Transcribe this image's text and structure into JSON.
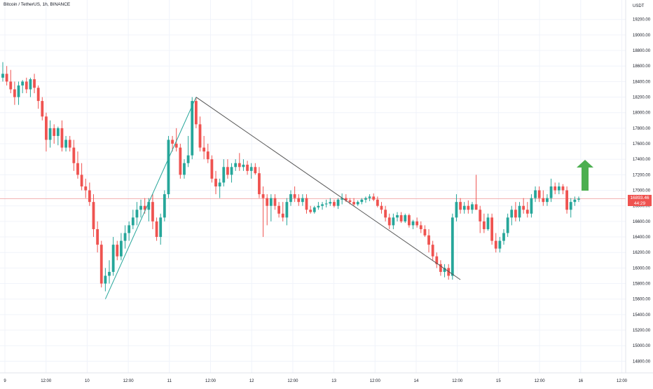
{
  "header": {
    "symbol_title": "Bitcoin / TetherUS, 1h, BINANCE"
  },
  "price_axis": {
    "currency": "USDT"
  },
  "last_price": {
    "value": "16893.46",
    "countdown": "44:29"
  },
  "colors": {
    "up": "#26a69a",
    "down": "#ef5350",
    "trend_up_line": "#26a69a",
    "trend_down_line": "#555555",
    "arrow": "#4caf50",
    "price_line": "#ef9a9a",
    "grid": "#f0f3fa",
    "axis_text": "#131722"
  },
  "annotations": {
    "arrow": {
      "direction": "up",
      "icon": "up-arrow-icon"
    }
  },
  "chart_data": {
    "type": "candlestick",
    "title": "",
    "xlabel": "",
    "ylabel": "",
    "ylim": [
      14650,
      19450
    ],
    "grid": true,
    "y_ticks": [
      "14800.00",
      "15000.00",
      "15200.00",
      "15400.00",
      "15600.00",
      "15800.00",
      "16000.00",
      "16200.00",
      "16400.00",
      "16600.00",
      "16800.00",
      "17000.00",
      "17200.00",
      "17400.00",
      "17600.00",
      "17800.00",
      "18000.00",
      "18200.00",
      "18400.00",
      "18600.00",
      "18800.00",
      "19000.00",
      "19200.00"
    ],
    "x_ticks": [
      "9",
      "12:00",
      "10",
      "12:00",
      "11",
      "12:00",
      "12",
      "12:00",
      "13",
      "12:00",
      "14",
      "12:00",
      "15",
      "12:00",
      "16",
      "12:00"
    ],
    "candles": [
      {
        "o": 18450,
        "h": 18650,
        "l": 18400,
        "c": 18500
      },
      {
        "o": 18500,
        "h": 18600,
        "l": 18350,
        "c": 18400
      },
      {
        "o": 18400,
        "h": 18550,
        "l": 18250,
        "c": 18300
      },
      {
        "o": 18300,
        "h": 18400,
        "l": 18100,
        "c": 18200
      },
      {
        "o": 18200,
        "h": 18400,
        "l": 18100,
        "c": 18350
      },
      {
        "o": 18350,
        "h": 18420,
        "l": 18250,
        "c": 18400
      },
      {
        "o": 18400,
        "h": 18450,
        "l": 18250,
        "c": 18300
      },
      {
        "o": 18300,
        "h": 18450,
        "l": 18200,
        "c": 18430
      },
      {
        "o": 18430,
        "h": 18500,
        "l": 18250,
        "c": 18320
      },
      {
        "o": 18320,
        "h": 18350,
        "l": 18050,
        "c": 18150
      },
      {
        "o": 18150,
        "h": 18200,
        "l": 17900,
        "c": 17950
      },
      {
        "o": 17950,
        "h": 18000,
        "l": 17500,
        "c": 17650
      },
      {
        "o": 17650,
        "h": 17900,
        "l": 17550,
        "c": 17800
      },
      {
        "o": 17800,
        "h": 17850,
        "l": 17600,
        "c": 17700
      },
      {
        "o": 17700,
        "h": 17820,
        "l": 17580,
        "c": 17800
      },
      {
        "o": 17800,
        "h": 17900,
        "l": 17500,
        "c": 17550
      },
      {
        "o": 17550,
        "h": 17700,
        "l": 17500,
        "c": 17650
      },
      {
        "o": 17650,
        "h": 17700,
        "l": 17500,
        "c": 17550
      },
      {
        "o": 17550,
        "h": 17650,
        "l": 17250,
        "c": 17350
      },
      {
        "o": 17350,
        "h": 17500,
        "l": 17150,
        "c": 17200
      },
      {
        "o": 17200,
        "h": 17350,
        "l": 17000,
        "c": 17050
      },
      {
        "o": 17050,
        "h": 17150,
        "l": 16900,
        "c": 17000
      },
      {
        "o": 17000,
        "h": 17100,
        "l": 16800,
        "c": 16850
      },
      {
        "o": 16850,
        "h": 16950,
        "l": 16400,
        "c": 16500
      },
      {
        "o": 16500,
        "h": 16600,
        "l": 16200,
        "c": 16300
      },
      {
        "o": 16300,
        "h": 16350,
        "l": 15750,
        "c": 15800
      },
      {
        "o": 15800,
        "h": 16000,
        "l": 15700,
        "c": 15900
      },
      {
        "o": 15900,
        "h": 16100,
        "l": 15800,
        "c": 15950
      },
      {
        "o": 15950,
        "h": 16400,
        "l": 15900,
        "c": 16300
      },
      {
        "o": 16300,
        "h": 16350,
        "l": 16100,
        "c": 16150
      },
      {
        "o": 16150,
        "h": 16450,
        "l": 16100,
        "c": 16350
      },
      {
        "o": 16350,
        "h": 16550,
        "l": 16250,
        "c": 16450
      },
      {
        "o": 16450,
        "h": 16600,
        "l": 16350,
        "c": 16550
      },
      {
        "o": 16550,
        "h": 16750,
        "l": 16500,
        "c": 16650
      },
      {
        "o": 16650,
        "h": 16850,
        "l": 16550,
        "c": 16750
      },
      {
        "o": 16750,
        "h": 16880,
        "l": 16650,
        "c": 16800
      },
      {
        "o": 16800,
        "h": 16900,
        "l": 16700,
        "c": 16750
      },
      {
        "o": 16750,
        "h": 16900,
        "l": 16600,
        "c": 16850
      },
      {
        "o": 16850,
        "h": 16950,
        "l": 16500,
        "c": 16600
      },
      {
        "o": 16600,
        "h": 16650,
        "l": 16350,
        "c": 16400
      },
      {
        "o": 16400,
        "h": 16700,
        "l": 16300,
        "c": 16650
      },
      {
        "o": 16650,
        "h": 17000,
        "l": 16600,
        "c": 16950
      },
      {
        "o": 16950,
        "h": 17700,
        "l": 16900,
        "c": 17650
      },
      {
        "o": 17650,
        "h": 17700,
        "l": 17500,
        "c": 17600
      },
      {
        "o": 17600,
        "h": 17800,
        "l": 17500,
        "c": 17550
      },
      {
        "o": 17550,
        "h": 17600,
        "l": 17150,
        "c": 17200
      },
      {
        "o": 17200,
        "h": 17400,
        "l": 17150,
        "c": 17350
      },
      {
        "o": 17350,
        "h": 17700,
        "l": 17300,
        "c": 17450
      },
      {
        "o": 17450,
        "h": 18200,
        "l": 17400,
        "c": 18150
      },
      {
        "o": 18150,
        "h": 18200,
        "l": 17800,
        "c": 17850
      },
      {
        "o": 17850,
        "h": 17950,
        "l": 17500,
        "c": 17550
      },
      {
        "o": 17550,
        "h": 17700,
        "l": 17400,
        "c": 17500
      },
      {
        "o": 17500,
        "h": 17600,
        "l": 17350,
        "c": 17400
      },
      {
        "o": 17400,
        "h": 17450,
        "l": 17100,
        "c": 17150
      },
      {
        "o": 17150,
        "h": 17250,
        "l": 16950,
        "c": 17050
      },
      {
        "o": 17050,
        "h": 17150,
        "l": 16900,
        "c": 17100
      },
      {
        "o": 17100,
        "h": 17400,
        "l": 17050,
        "c": 17300
      },
      {
        "o": 17300,
        "h": 17400,
        "l": 17150,
        "c": 17200
      },
      {
        "o": 17200,
        "h": 17350,
        "l": 17100,
        "c": 17300
      },
      {
        "o": 17300,
        "h": 17400,
        "l": 17250,
        "c": 17350
      },
      {
        "o": 17350,
        "h": 17480,
        "l": 17250,
        "c": 17300
      },
      {
        "o": 17300,
        "h": 17400,
        "l": 17250,
        "c": 17330
      },
      {
        "o": 17330,
        "h": 17380,
        "l": 17200,
        "c": 17250
      },
      {
        "o": 17250,
        "h": 17350,
        "l": 17150,
        "c": 17300
      },
      {
        "o": 17300,
        "h": 17350,
        "l": 17200,
        "c": 17220
      },
      {
        "o": 17220,
        "h": 17300,
        "l": 16900,
        "c": 16950
      },
      {
        "o": 16950,
        "h": 17050,
        "l": 16400,
        "c": 16900
      },
      {
        "o": 16900,
        "h": 16950,
        "l": 16550,
        "c": 16800
      },
      {
        "o": 16800,
        "h": 16950,
        "l": 16600,
        "c": 16900
      },
      {
        "o": 16900,
        "h": 16950,
        "l": 16750,
        "c": 16800
      },
      {
        "o": 16800,
        "h": 16850,
        "l": 16650,
        "c": 16700
      },
      {
        "o": 16700,
        "h": 16850,
        "l": 16600,
        "c": 16650
      },
      {
        "o": 16650,
        "h": 16900,
        "l": 16550,
        "c": 16850
      },
      {
        "o": 16850,
        "h": 17000,
        "l": 16800,
        "c": 16950
      },
      {
        "o": 16950,
        "h": 17050,
        "l": 16850,
        "c": 16900
      },
      {
        "o": 16900,
        "h": 16950,
        "l": 16800,
        "c": 16850
      },
      {
        "o": 16850,
        "h": 16950,
        "l": 16800,
        "c": 16900
      },
      {
        "o": 16900,
        "h": 16950,
        "l": 16700,
        "c": 16750
      },
      {
        "o": 16750,
        "h": 16800,
        "l": 16700,
        "c": 16720
      },
      {
        "o": 16720,
        "h": 16800,
        "l": 16700,
        "c": 16780
      },
      {
        "o": 16780,
        "h": 16850,
        "l": 16750,
        "c": 16800
      },
      {
        "o": 16800,
        "h": 16850,
        "l": 16750,
        "c": 16820
      },
      {
        "o": 16820,
        "h": 16880,
        "l": 16780,
        "c": 16830
      },
      {
        "o": 16830,
        "h": 16900,
        "l": 16800,
        "c": 16850
      },
      {
        "o": 16850,
        "h": 16880,
        "l": 16780,
        "c": 16800
      },
      {
        "o": 16800,
        "h": 16900,
        "l": 16760,
        "c": 16880
      },
      {
        "o": 16880,
        "h": 16960,
        "l": 16820,
        "c": 16900
      },
      {
        "o": 16900,
        "h": 16950,
        "l": 16850,
        "c": 16870
      },
      {
        "o": 16870,
        "h": 16900,
        "l": 16820,
        "c": 16850
      },
      {
        "o": 16850,
        "h": 16900,
        "l": 16800,
        "c": 16820
      },
      {
        "o": 16820,
        "h": 16870,
        "l": 16800,
        "c": 16850
      },
      {
        "o": 16850,
        "h": 16900,
        "l": 16820,
        "c": 16880
      },
      {
        "o": 16880,
        "h": 16920,
        "l": 16840,
        "c": 16900
      },
      {
        "o": 16900,
        "h": 16950,
        "l": 16860,
        "c": 16920
      },
      {
        "o": 16920,
        "h": 16960,
        "l": 16860,
        "c": 16880
      },
      {
        "o": 16880,
        "h": 16920,
        "l": 16780,
        "c": 16800
      },
      {
        "o": 16800,
        "h": 16850,
        "l": 16700,
        "c": 16750
      },
      {
        "o": 16750,
        "h": 16800,
        "l": 16600,
        "c": 16650
      },
      {
        "o": 16650,
        "h": 16700,
        "l": 16500,
        "c": 16550
      },
      {
        "o": 16550,
        "h": 16700,
        "l": 16500,
        "c": 16650
      },
      {
        "o": 16650,
        "h": 16720,
        "l": 16600,
        "c": 16680
      },
      {
        "o": 16680,
        "h": 16720,
        "l": 16580,
        "c": 16600
      },
      {
        "o": 16600,
        "h": 16700,
        "l": 16580,
        "c": 16680
      },
      {
        "o": 16680,
        "h": 16700,
        "l": 16520,
        "c": 16550
      },
      {
        "o": 16550,
        "h": 16620,
        "l": 16500,
        "c": 16600
      },
      {
        "o": 16600,
        "h": 16650,
        "l": 16520,
        "c": 16550
      },
      {
        "o": 16550,
        "h": 16600,
        "l": 16450,
        "c": 16500
      },
      {
        "o": 16500,
        "h": 16550,
        "l": 16400,
        "c": 16420
      },
      {
        "o": 16420,
        "h": 16500,
        "l": 16200,
        "c": 16300
      },
      {
        "o": 16300,
        "h": 16350,
        "l": 16100,
        "c": 16150
      },
      {
        "o": 16150,
        "h": 16200,
        "l": 16000,
        "c": 16050
      },
      {
        "o": 16050,
        "h": 16100,
        "l": 15900,
        "c": 15950
      },
      {
        "o": 15950,
        "h": 16050,
        "l": 15880,
        "c": 16000
      },
      {
        "o": 16000,
        "h": 16050,
        "l": 15850,
        "c": 15900
      },
      {
        "o": 15900,
        "h": 16700,
        "l": 15850,
        "c": 16650
      },
      {
        "o": 16650,
        "h": 16950,
        "l": 16600,
        "c": 16850
      },
      {
        "o": 16850,
        "h": 16900,
        "l": 16700,
        "c": 16750
      },
      {
        "o": 16750,
        "h": 16850,
        "l": 16700,
        "c": 16800
      },
      {
        "o": 16800,
        "h": 16870,
        "l": 16700,
        "c": 16750
      },
      {
        "o": 16750,
        "h": 16850,
        "l": 16700,
        "c": 16820
      },
      {
        "o": 16820,
        "h": 17200,
        "l": 16750,
        "c": 16750
      },
      {
        "o": 16750,
        "h": 16800,
        "l": 16450,
        "c": 16600
      },
      {
        "o": 16600,
        "h": 16700,
        "l": 16450,
        "c": 16500
      },
      {
        "o": 16500,
        "h": 16700,
        "l": 16480,
        "c": 16650
      },
      {
        "o": 16650,
        "h": 16700,
        "l": 16300,
        "c": 16350
      },
      {
        "o": 16350,
        "h": 16450,
        "l": 16200,
        "c": 16250
      },
      {
        "o": 16250,
        "h": 16400,
        "l": 16200,
        "c": 16350
      },
      {
        "o": 16350,
        "h": 16500,
        "l": 16300,
        "c": 16450
      },
      {
        "o": 16450,
        "h": 16700,
        "l": 16400,
        "c": 16650
      },
      {
        "o": 16650,
        "h": 16800,
        "l": 16550,
        "c": 16750
      },
      {
        "o": 16750,
        "h": 16850,
        "l": 16600,
        "c": 16650
      },
      {
        "o": 16650,
        "h": 16850,
        "l": 16600,
        "c": 16800
      },
      {
        "o": 16800,
        "h": 16900,
        "l": 16700,
        "c": 16750
      },
      {
        "o": 16750,
        "h": 16850,
        "l": 16650,
        "c": 16700
      },
      {
        "o": 16700,
        "h": 16950,
        "l": 16650,
        "c": 16900
      },
      {
        "o": 16900,
        "h": 17050,
        "l": 16850,
        "c": 17000
      },
      {
        "o": 17000,
        "h": 17050,
        "l": 16850,
        "c": 16900
      },
      {
        "o": 16900,
        "h": 17000,
        "l": 16800,
        "c": 16850
      },
      {
        "o": 16850,
        "h": 16950,
        "l": 16800,
        "c": 16900
      },
      {
        "o": 16900,
        "h": 17150,
        "l": 16850,
        "c": 17050
      },
      {
        "o": 17050,
        "h": 17100,
        "l": 16950,
        "c": 17000
      },
      {
        "o": 17000,
        "h": 17100,
        "l": 16950,
        "c": 17050
      },
      {
        "o": 17050,
        "h": 17080,
        "l": 16950,
        "c": 17000
      },
      {
        "o": 17000,
        "h": 17050,
        "l": 16700,
        "c": 16750
      },
      {
        "o": 16750,
        "h": 16900,
        "l": 16650,
        "c": 16850
      },
      {
        "o": 16850,
        "h": 16920,
        "l": 16800,
        "c": 16880
      },
      {
        "o": 16880,
        "h": 16920,
        "l": 16850,
        "c": 16893
      }
    ],
    "last_price": 16893.46,
    "trendlines": [
      {
        "color": "green",
        "from": {
          "candle": 26,
          "price": 15600
        },
        "to": {
          "candle": 49,
          "price": 18200
        }
      },
      {
        "color": "gray",
        "from": {
          "candle": 49,
          "price": 18200
        },
        "to": {
          "candle": 116,
          "price": 15850
        }
      }
    ]
  }
}
